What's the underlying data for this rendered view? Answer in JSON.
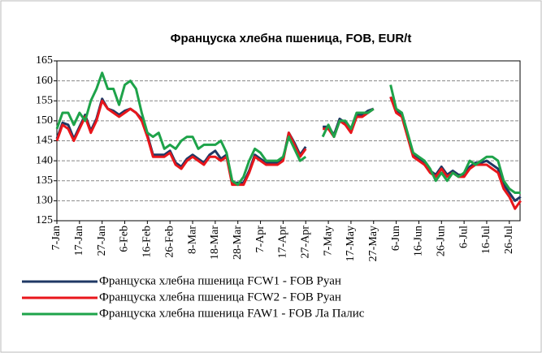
{
  "chart_data": {
    "type": "line",
    "title": "Француска хлебна пшеница, FOB, EUR/t",
    "categories": [
      "7-Jan",
      null,
      null,
      null,
      "17-Jan",
      null,
      null,
      null,
      "27-Jan",
      null,
      null,
      null,
      "6-Feb",
      null,
      null,
      null,
      "16-Feb",
      null,
      null,
      null,
      "26-Feb",
      null,
      null,
      null,
      "8-Mar",
      null,
      null,
      null,
      "18-Mar",
      null,
      null,
      null,
      "28-Mar",
      null,
      null,
      null,
      "7-Apr",
      null,
      null,
      null,
      "17-Apr",
      null,
      null,
      null,
      "27-Apr",
      null,
      null,
      null,
      "7-May",
      null,
      null,
      null,
      "17-May",
      null,
      null,
      null,
      "27-May",
      null,
      null,
      null,
      "6-Jun",
      null,
      null,
      null,
      "16-Jun",
      null,
      null,
      null,
      "26-Jun",
      null,
      null,
      null,
      "6-Jul",
      null,
      null,
      null,
      "16-Jul",
      null,
      null,
      null,
      "26-Jul",
      null,
      null
    ],
    "series": [
      {
        "name": "Француска хлебна пшеница FCW1 - FOB Руан",
        "color": "#1f3864",
        "values": [
          145.5,
          149.5,
          149,
          145.5,
          148.5,
          151.5,
          147.5,
          150.5,
          155.5,
          153,
          152.5,
          151.5,
          152.5,
          153,
          152,
          150.5,
          146.5,
          141.5,
          141.5,
          141.5,
          142.5,
          139.5,
          138.5,
          140.5,
          141.5,
          140.5,
          139.5,
          141.5,
          142.5,
          140.5,
          141.5,
          134.5,
          134.5,
          134.5,
          137.5,
          141.5,
          140.5,
          139.5,
          139.5,
          139.5,
          140.5,
          147,
          144.5,
          141.5,
          143.5,
          null,
          null,
          148.5,
          148.5,
          146.5,
          150.5,
          149.5,
          147.5,
          151.5,
          151.5,
          152.5,
          153,
          null,
          null,
          156,
          152.5,
          151.5,
          146.5,
          141.5,
          140.5,
          139.5,
          137.5,
          136.5,
          138.5,
          136.5,
          137.5,
          136.5,
          136.5,
          138.5,
          139.5,
          139.5,
          140,
          139,
          138,
          134,
          132,
          130,
          131
        ]
      },
      {
        "name": "Француска хлебна пшеница FCW2 - FOB Руан",
        "color": "#e8161b",
        "values": [
          145,
          149,
          148,
          145,
          148,
          151,
          147,
          150,
          155,
          153,
          152,
          151,
          152,
          153,
          152,
          150,
          146,
          141,
          141,
          141,
          142,
          139,
          138,
          140,
          141,
          140,
          139,
          141,
          141,
          140,
          141,
          134,
          134,
          134,
          137,
          141,
          140,
          139,
          139,
          139,
          140,
          147,
          144,
          141,
          143,
          null,
          null,
          148,
          148,
          146,
          150,
          149,
          147,
          151,
          151,
          152,
          153,
          null,
          null,
          156,
          152,
          151,
          146,
          141,
          140,
          139,
          137,
          136,
          138,
          136,
          137,
          136,
          136,
          138,
          139,
          139,
          139,
          138,
          137,
          133,
          131,
          128,
          130
        ]
      },
      {
        "name": "Француска хлебна пшеница FAW1 - FOB Ла Палис",
        "color": "#1ea34a",
        "values": [
          148,
          152,
          152,
          149,
          152,
          150,
          155,
          158,
          162,
          158,
          158,
          154,
          159,
          160,
          158,
          152,
          147,
          146,
          147,
          143,
          144,
          143,
          145,
          146,
          146,
          143,
          144,
          144,
          144,
          145,
          142,
          135,
          134,
          136,
          140,
          143,
          142,
          140,
          140,
          140,
          141,
          146,
          143,
          140,
          141,
          null,
          null,
          146,
          149,
          146,
          150,
          150,
          148,
          152,
          152,
          152,
          153,
          null,
          null,
          159,
          153,
          152,
          147,
          142,
          141,
          140,
          138,
          135,
          137,
          135,
          137,
          136,
          137,
          140,
          139,
          140,
          141,
          141,
          140,
          135,
          133,
          132,
          132
        ]
      }
    ],
    "ylim": [
      125,
      165
    ],
    "yticks": [
      125,
      130,
      135,
      140,
      145,
      150,
      155,
      160,
      165
    ],
    "grid": true
  }
}
